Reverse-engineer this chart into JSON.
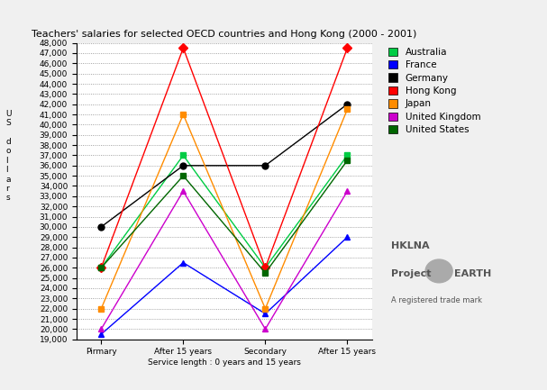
{
  "title": "Teachers' salaries for selected OECD countries and Hong Kong (2000 - 2001)",
  "xlabel": "Service length : 0 years and 15 years",
  "categories": [
    "Pirmary",
    "After 15 years",
    "Secondary",
    "After 15 years"
  ],
  "ylim": [
    19000,
    48000
  ],
  "yticks": [
    19000,
    20000,
    21000,
    22000,
    23000,
    24000,
    25000,
    26000,
    27000,
    28000,
    29000,
    30000,
    31000,
    32000,
    33000,
    34000,
    35000,
    36000,
    37000,
    38000,
    39000,
    40000,
    41000,
    42000,
    43000,
    44000,
    45000,
    46000,
    47000,
    48000
  ],
  "ytick_labels": [
    "19,000",
    "20,000",
    "21,000",
    "22,000",
    "23,000",
    "24,000",
    "25,000",
    "26,000",
    "27,000",
    "28,000",
    "29,000",
    "30,000",
    "31,000",
    "32,000",
    "33,000",
    "34,000",
    "35,000",
    "36,000",
    "37,000",
    "38,000",
    "39,000",
    "40,000",
    "41,000",
    "42,000",
    "43,000",
    "44,000",
    "45,000",
    "46,000",
    "47,000",
    "48,000"
  ],
  "series": [
    {
      "name": "Australia",
      "color": "#00cc44",
      "marker": "s",
      "values": [
        26000,
        37000,
        26000,
        37000
      ]
    },
    {
      "name": "France",
      "color": "#0000ff",
      "marker": "^",
      "values": [
        19500,
        26500,
        21500,
        29000
      ]
    },
    {
      "name": "Germany",
      "color": "#000000",
      "marker": "o",
      "values": [
        30000,
        36000,
        36000,
        42000
      ]
    },
    {
      "name": "Hong Kong",
      "color": "#ff0000",
      "marker": "D",
      "values": [
        26000,
        47500,
        26000,
        47500
      ]
    },
    {
      "name": "Japan",
      "color": "#ff8c00",
      "marker": "s",
      "values": [
        22000,
        41000,
        22000,
        41500
      ]
    },
    {
      "name": "United Kingdom",
      "color": "#cc00cc",
      "marker": "^",
      "values": [
        20000,
        33500,
        20000,
        33500
      ]
    },
    {
      "name": "United States",
      "color": "#006600",
      "marker": "s",
      "values": [
        26000,
        35000,
        25500,
        36500
      ]
    }
  ],
  "figsize": [
    6.07,
    4.33
  ],
  "dpi": 100,
  "background_color": "#f0f0f0",
  "plot_bg_color": "#ffffff",
  "grid_color": "#888888",
  "title_fontsize": 8,
  "tick_fontsize": 6.5,
  "legend_fontsize": 7.5
}
